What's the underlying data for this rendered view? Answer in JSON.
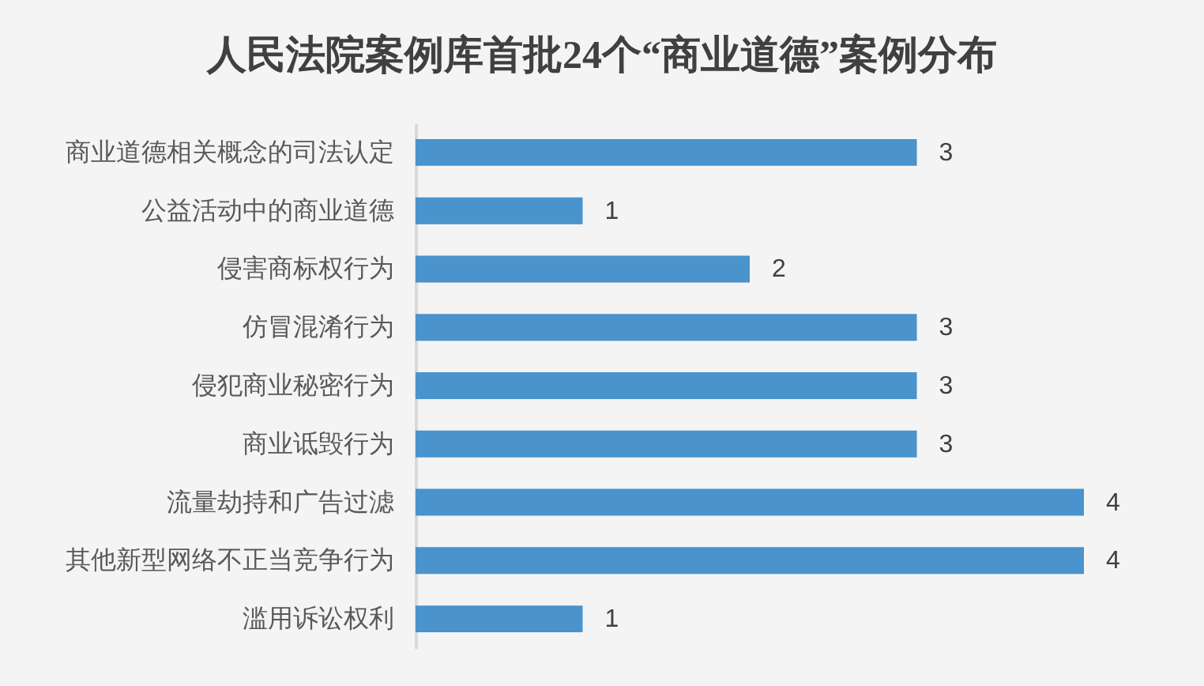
{
  "chart_data": {
    "type": "bar",
    "orientation": "horizontal",
    "title": "人民法院案例库首批24个“商业道德”案例分布",
    "categories": [
      "商业道德相关概念的司法认定",
      "公益活动中的商业道德",
      "侵害商标权行为",
      "仿冒混淆行为",
      "侵犯商业秘密行为",
      "商业诋毁行为",
      "流量劫持和广告过滤",
      "其他新型网络不正当竞争行为",
      "滥用诉讼权利"
    ],
    "values": [
      3,
      1,
      2,
      3,
      3,
      3,
      4,
      4,
      1
    ],
    "color": "#4a93cc",
    "data_labels": true,
    "tick_labels": "y"
  }
}
